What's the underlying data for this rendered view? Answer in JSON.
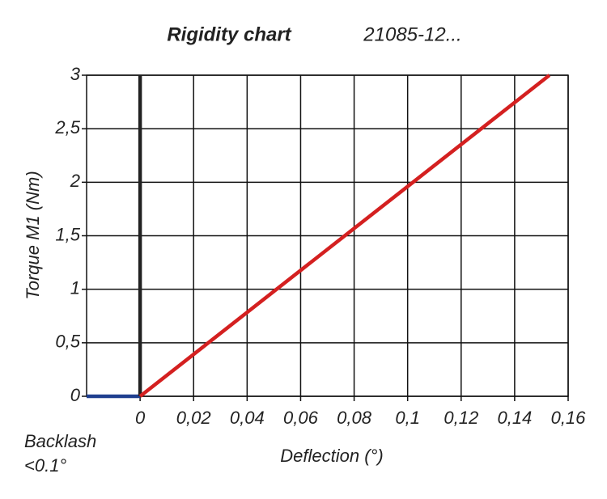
{
  "chart_data": {
    "type": "line",
    "title": "Rigidity chart",
    "subtitle": "21085-12...",
    "x_label": "Deflection (°)",
    "y_label": "Torque M1 (Nm)",
    "annotation": [
      "Backlash",
      "<0.1°"
    ],
    "xlim": [
      -0.02,
      0.16
    ],
    "ylim": [
      0,
      3
    ],
    "xticks": [
      0,
      {
        "value": 0.02,
        "label": "0,02"
      },
      {
        "value": 0.04,
        "label": "0,04"
      },
      {
        "value": 0.06,
        "label": "0,06"
      },
      {
        "value": 0.08,
        "label": "0,08"
      },
      {
        "value": 0.1,
        "label": "0,1"
      },
      {
        "value": 0.12,
        "label": "0,12"
      },
      {
        "value": 0.14,
        "label": "0,14"
      },
      {
        "value": 0.16,
        "label": "0,16"
      }
    ],
    "yticks": [
      0,
      {
        "value": 0.5,
        "label": "0,5"
      },
      1,
      {
        "value": 1.5,
        "label": "1,5"
      },
      2,
      {
        "value": 2.5,
        "label": "2,5"
      },
      3
    ],
    "grid": true,
    "series": [
      {
        "color": "#1f3f8f",
        "x": [
          -0.02,
          0
        ],
        "values": [
          0,
          0
        ]
      },
      {
        "color": "#222222",
        "x": [
          0,
          0
        ],
        "values": [
          0,
          3
        ]
      },
      {
        "color": "#d42020",
        "x": [
          0,
          0.153
        ],
        "values": [
          0,
          3
        ]
      }
    ]
  }
}
